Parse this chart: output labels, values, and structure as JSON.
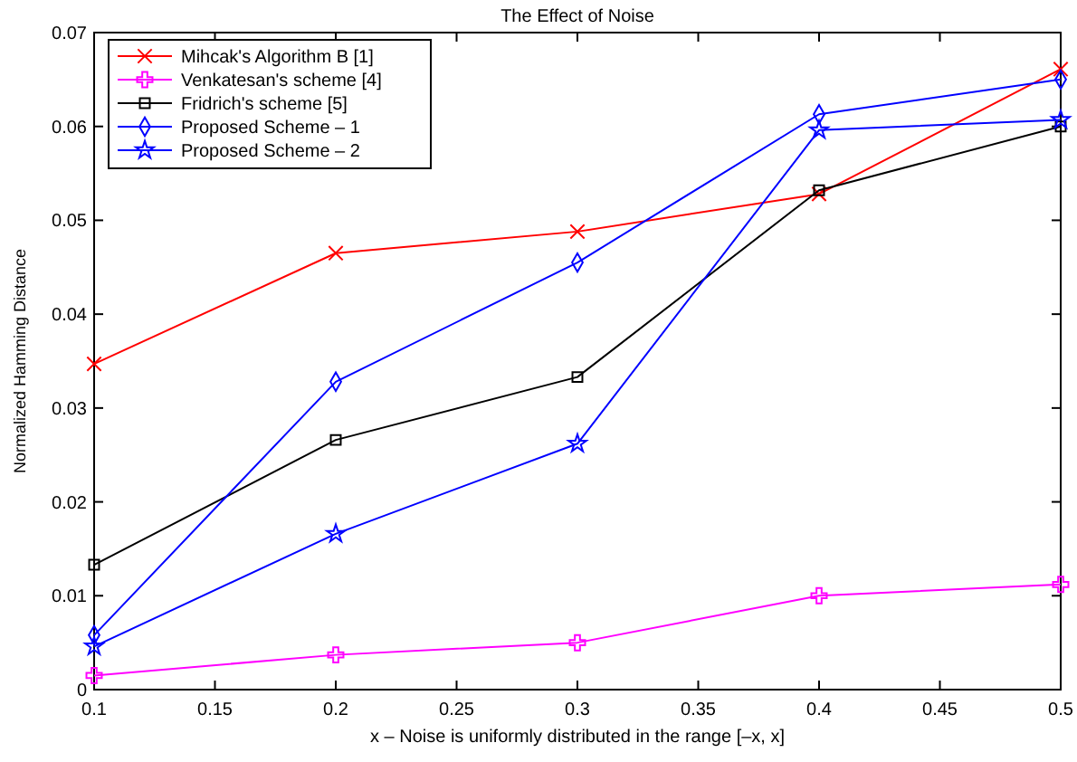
{
  "chart_data": {
    "type": "line",
    "title": "The Effect of Noise",
    "xlabel": "x – Noise is uniformly distributed in the range [–x, x]",
    "ylabel": "Normalized Hamming Distance",
    "x": [
      0.1,
      0.2,
      0.3,
      0.4,
      0.5
    ],
    "series": [
      {
        "name": "Mihcak's Algorithm B [1]",
        "color": "#ff0000",
        "marker": "x",
        "values": [
          0.0347,
          0.0465,
          0.0488,
          0.0528,
          0.0661
        ]
      },
      {
        "name": "Venkatesan's scheme [4]",
        "color": "#ff00ff",
        "marker": "cross",
        "values": [
          0.0015,
          0.0037,
          0.005,
          0.01,
          0.0112
        ]
      },
      {
        "name": "Fridrich's scheme [5]",
        "color": "#000000",
        "marker": "square",
        "values": [
          0.0133,
          0.0266,
          0.0333,
          0.0532,
          0.06
        ]
      },
      {
        "name": "Proposed Scheme – 1",
        "color": "#0000ff",
        "marker": "diamond",
        "values": [
          0.0058,
          0.0328,
          0.0455,
          0.0613,
          0.065
        ]
      },
      {
        "name": "Proposed Scheme – 2",
        "color": "#0000ff",
        "marker": "star",
        "values": [
          0.0046,
          0.0166,
          0.0262,
          0.0596,
          0.0607
        ]
      }
    ],
    "xlim": [
      0.1,
      0.5
    ],
    "xticks": [
      0.1,
      0.15,
      0.2,
      0.25,
      0.3,
      0.35,
      0.4,
      0.45,
      0.5
    ],
    "ylim": [
      0,
      0.07
    ],
    "yticks": [
      0,
      0.01,
      0.02,
      0.03,
      0.04,
      0.05,
      0.06,
      0.07
    ],
    "grid": false,
    "legend": "top left",
    "line_style": "solid"
  }
}
